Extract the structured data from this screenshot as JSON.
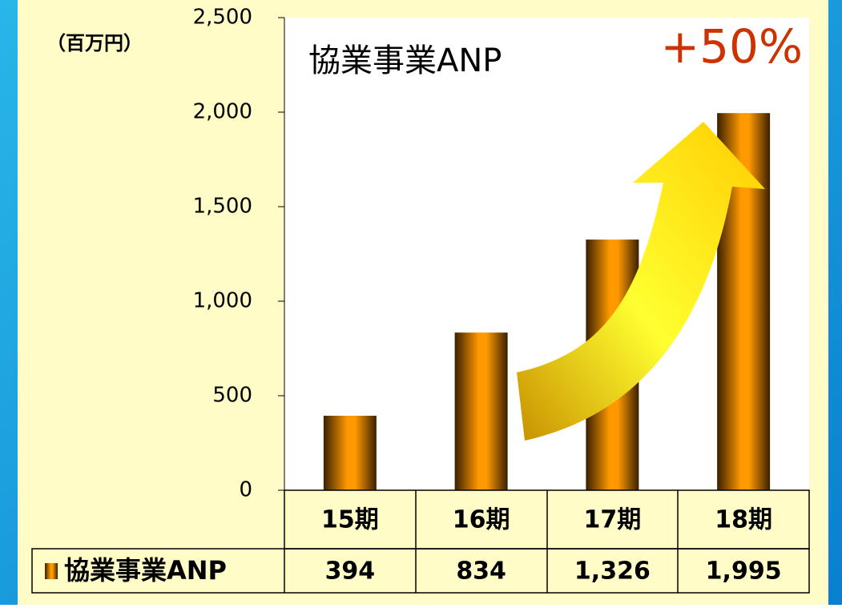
{
  "chart_data": {
    "type": "bar",
    "title": "協業事業ANP",
    "y_label": "（百万円）",
    "annotation": "+50%",
    "categories": [
      "15期",
      "16期",
      "17期",
      "18期"
    ],
    "series": [
      {
        "name": "協業事業ANP",
        "color": "#ff9900",
        "values": [
          394,
          834,
          1326,
          1995
        ],
        "value_labels": [
          "394",
          "834",
          "1,326",
          "1,995"
        ]
      }
    ],
    "ylim": [
      0,
      2500
    ],
    "yticks": [
      0,
      500,
      {
        "value": 1000,
        "label": "1,000"
      },
      {
        "value": 1500,
        "label": "1,500"
      },
      {
        "value": 2000,
        "label": "2,000"
      },
      {
        "value": 2500,
        "label": "2,500"
      }
    ],
    "grid": false
  }
}
